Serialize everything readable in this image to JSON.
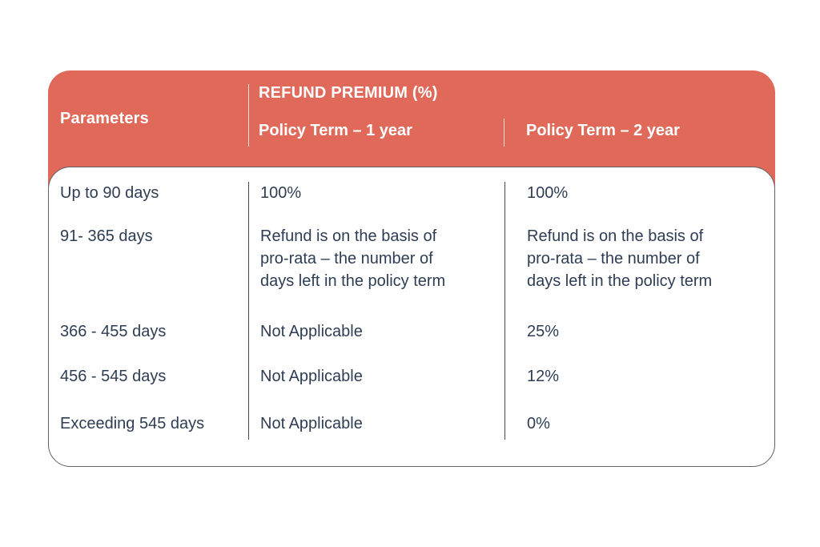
{
  "colors": {
    "header_bg": "#E0695A",
    "header_text": "#FFFFFF",
    "body_text": "#2E3D54",
    "body_divider": "#3E4C64",
    "card_border": "#5E6066",
    "page_bg": "#FFFFFF"
  },
  "header": {
    "parameters_label": "Parameters",
    "group_title": "REFUND PREMIUM (%)",
    "term1_label": "Policy Term – 1 year",
    "term2_label": "Policy Term – 2 year"
  },
  "rows": [
    {
      "parameter": "Up to 90 days",
      "term1": "100%",
      "term2": "100%"
    },
    {
      "parameter": "91- 365 days",
      "term1": "Refund is on the basis of pro-rata – the number of days left in the policy term",
      "term2": "Refund is on the basis of pro-rata – the number of days left in the policy term"
    },
    {
      "parameter": "366 - 455 days",
      "term1": "Not Applicable",
      "term2": "25%"
    },
    {
      "parameter": "456 - 545 days",
      "term1": "Not Applicable",
      "term2": "12%"
    },
    {
      "parameter": "Exceeding 545 days",
      "term1": "Not Applicable",
      "term2": "0%"
    }
  ]
}
